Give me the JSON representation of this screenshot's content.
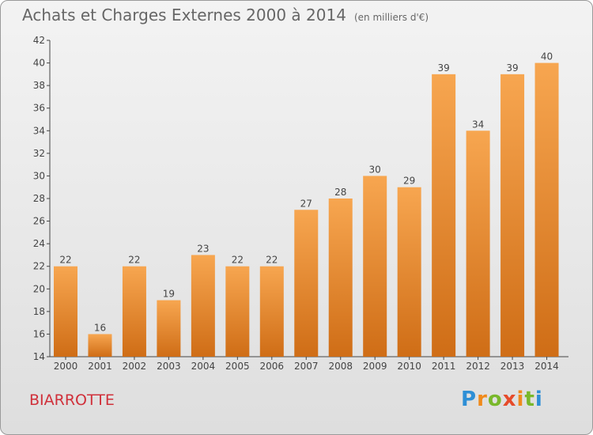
{
  "header": {
    "title": "Achats et Charges Externes 2000 à 2014",
    "unit": "(en milliers d'€)"
  },
  "footer": {
    "commune": "BIARROTTE",
    "logo": "Proxiti"
  },
  "colors": {
    "bar_light": "#f7a650",
    "bar_dark": "#cf6d16",
    "title": "#666666",
    "commune": "#d0303a"
  },
  "chart_data": {
    "type": "bar",
    "title": "Achats et Charges Externes 2000 à 2014",
    "subtitle": "(en milliers d'€)",
    "xlabel": "",
    "ylabel": "",
    "categories": [
      "2000",
      "2001",
      "2002",
      "2003",
      "2004",
      "2005",
      "2006",
      "2007",
      "2008",
      "2009",
      "2010",
      "2011",
      "2012",
      "2013",
      "2014"
    ],
    "values": [
      22,
      16,
      22,
      19,
      23,
      22,
      22,
      27,
      28,
      30,
      29,
      39,
      34,
      39,
      40
    ],
    "ylim": [
      14,
      42
    ],
    "yticks": [
      14,
      16,
      18,
      20,
      22,
      24,
      26,
      28,
      30,
      32,
      34,
      36,
      38,
      40,
      42
    ],
    "grid": false,
    "legend": "none"
  }
}
